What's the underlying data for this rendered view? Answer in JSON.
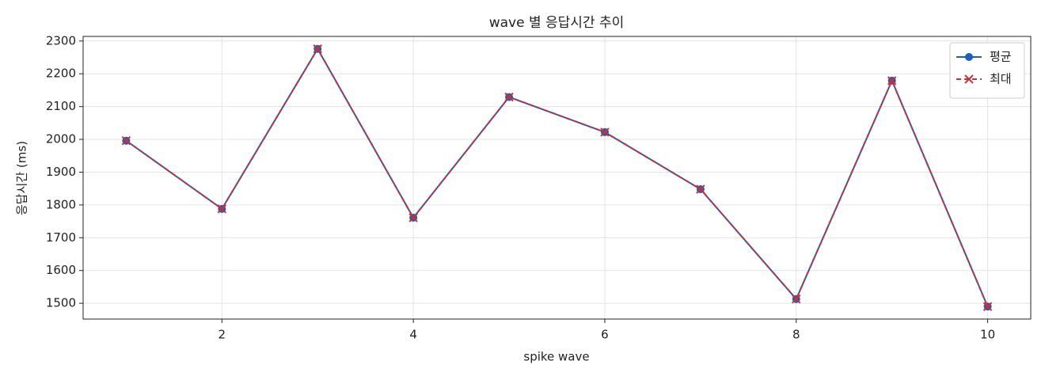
{
  "chart_data": {
    "type": "line",
    "title": "wave 별 응답시간 추이",
    "x_label": "spike wave",
    "y_label": "응답시간 (ms)",
    "x": [
      1,
      2,
      3,
      4,
      5,
      6,
      7,
      8,
      9,
      10
    ],
    "series": [
      {
        "name": "평균",
        "color": "#1f5fb4",
        "marker": "o",
        "linestyle": "solid",
        "values": [
          1996,
          1788,
          2276,
          1761,
          2129,
          2022,
          1848,
          1513,
          2179,
          1490
        ]
      },
      {
        "name": "최대",
        "color": "#c8303a",
        "marker": "x",
        "linestyle": "dashed",
        "values": [
          1996,
          1788,
          2276,
          1761,
          2129,
          2022,
          1848,
          1513,
          2179,
          1490
        ]
      }
    ],
    "xlim": [
      0.55,
      10.45
    ],
    "ylim": [
      1452,
      2314
    ],
    "xticks": [
      2,
      4,
      6,
      8,
      10
    ],
    "yticks": [
      1500,
      1600,
      1700,
      1800,
      1900,
      2000,
      2100,
      2200,
      2300
    ],
    "grid": true,
    "legend": "upper right"
  }
}
